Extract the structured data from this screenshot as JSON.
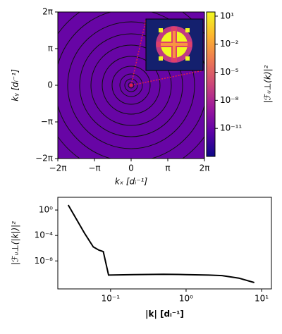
{
  "chart_data": [
    {
      "type": "heatmap",
      "xlabel": "kₓ [dᵢ⁻¹]",
      "ylabel": "kᵧ [dᵢ⁻¹]",
      "xlim": [
        -6.2832,
        6.2832
      ],
      "ylim": [
        -6.2832,
        6.2832
      ],
      "xticks": [
        {
          "value": -6.2832,
          "label": "−2π"
        },
        {
          "value": -3.1416,
          "label": "−π"
        },
        0,
        {
          "value": 3.1416,
          "label": "π"
        },
        {
          "value": 6.2832,
          "label": "2π"
        }
      ],
      "yticks": [
        {
          "value": -6.2832,
          "label": "−2π"
        },
        {
          "value": -3.1416,
          "label": "−π"
        },
        0,
        {
          "value": 3.1416,
          "label": "π"
        },
        {
          "value": 6.2832,
          "label": "2π"
        }
      ],
      "field_value": 1e-11,
      "colorbar": {
        "label": "|ℱᵤ⊥(k)|²",
        "log": true,
        "lim": [
          1e-14,
          28
        ],
        "ticks": [
          {
            "value": 10,
            "label": "10¹"
          },
          {
            "value": 0.01,
            "label": "10⁻²"
          },
          {
            "value": 1e-05,
            "label": "10⁻⁵"
          },
          {
            "value": 1e-08,
            "label": "10⁻⁸"
          },
          {
            "value": 1e-11,
            "label": "10⁻¹¹"
          }
        ],
        "colormap": [
          "#0d0887",
          "#5c01a6",
          "#9c179e",
          "#cc4778",
          "#ed7953",
          "#fdb42f",
          "#f0f921"
        ]
      }
    },
    {
      "type": "line",
      "xlabel": "|k| [dᵢ⁻¹]",
      "ylabel": "|ℱᵤ⊥(|k|)|²",
      "xscale": "log",
      "yscale": "log",
      "xlim": [
        0.02,
        13.5
      ],
      "ylim": [
        4e-13,
        100
      ],
      "xticks": [
        {
          "value": 0.1,
          "label": "10⁻¹"
        },
        {
          "value": 1,
          "label": "10⁰"
        },
        {
          "value": 10,
          "label": "10¹"
        }
      ],
      "yticks": [
        {
          "value": 1e-08,
          "label": "10⁻⁸"
        },
        {
          "value": 0.0001,
          "label": "10⁻⁴"
        },
        {
          "value": 1,
          "label": "10⁰"
        }
      ],
      "x": [
        0.0275,
        0.045,
        0.059,
        0.07,
        0.08,
        0.094,
        0.2,
        0.5,
        1,
        2,
        3,
        5,
        8
      ],
      "values": [
        6,
        0.00025,
        1.6e-06,
        5e-07,
        3e-07,
        6e-11,
        7e-11,
        8e-11,
        7e-11,
        6e-11,
        5e-11,
        2e-11,
        4e-12
      ],
      "color": "#000000"
    }
  ]
}
